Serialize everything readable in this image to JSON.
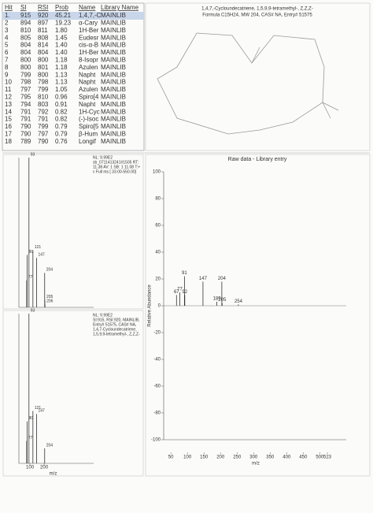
{
  "table": {
    "header": [
      "Hit",
      "SI",
      "RSI",
      "Prob",
      "Name",
      "Library Name"
    ],
    "rows": [
      [
        "1.",
        "915",
        "920",
        "45.21",
        "1,4,7,-C",
        "MAINLIB"
      ],
      [
        "2",
        "894",
        "897",
        "19.23",
        "α-Cary",
        "MAINLIB"
      ],
      [
        "3",
        "810",
        "811",
        "1.80",
        "1H-Ber",
        "MAINLIB"
      ],
      [
        "4",
        "805",
        "808",
        "1.45",
        "Eudesr",
        "MAINLIB"
      ],
      [
        "5",
        "804",
        "814",
        "1.40",
        "cis-α-B",
        "MAINLIB"
      ],
      [
        "6",
        "804",
        "804",
        "1.40",
        "1H-Ber",
        "MAINLIB"
      ],
      [
        "7",
        "800",
        "800",
        "1.18",
        "8-Isopr",
        "MAINLIB"
      ],
      [
        "8",
        "800",
        "801",
        "1.18",
        "Azulen",
        "MAINLIB"
      ],
      [
        "9",
        "799",
        "800",
        "1.13",
        "Napht",
        "MAINLIB"
      ],
      [
        "10",
        "798",
        "798",
        "1.13",
        "Napht",
        "MAINLIB"
      ],
      [
        "11",
        "797",
        "799",
        "1.05",
        "Azulen",
        "MAINLIB"
      ],
      [
        "12",
        "795",
        "810",
        "0.96",
        "Spiro[4",
        "MAINLIB"
      ],
      [
        "13",
        "794",
        "803",
        "0.91",
        "Napht",
        "MAINLIB"
      ],
      [
        "14",
        "791",
        "792",
        "0.82",
        "1H-Cyc",
        "MAINLIB"
      ],
      [
        "15",
        "791",
        "791",
        "0.82",
        "(-)-Isoc",
        "MAINLIB"
      ],
      [
        "16",
        "790",
        "799",
        "0.79",
        "Spiro[5",
        "MAINLIB"
      ],
      [
        "17",
        "790",
        "797",
        "0.79",
        "β-Hum",
        "MAINLIB"
      ],
      [
        "18",
        "789",
        "790",
        "0.76",
        "Longif",
        "MAINLIB"
      ]
    ]
  },
  "structure": {
    "name": "1,4,7,-Cycloundecatriene, 1,5,9,9-tetramethyl-, Z,Z,Z-",
    "info": "Formula C15H24, MW 204, CAS# NA, Entry# 51575"
  },
  "chart_data": [
    {
      "type": "bar",
      "annotation": [
        "NL: 9.99E2",
        "sb_0711413241#1505 RT:",
        "11.38 AV: 1 SB: 1 11.08 T:+",
        "c Full ms [ 33.00-550.00]"
      ],
      "x": [
        77,
        80,
        93,
        121,
        147,
        204,
        205,
        206
      ],
      "values": [
        18,
        35,
        100,
        38,
        33,
        23,
        5,
        2
      ],
      "xlim": [
        33,
        550
      ],
      "ylim": [
        0,
        100
      ],
      "color": "#333333"
    },
    {
      "type": "bar",
      "annotation": [
        "NL: 9.99E2",
        "SI:915, RSI:920, MAINLIB,",
        "Entry# 51575, CAS# NA,",
        "1,4,7-Cycloundecatriene,",
        "1,5,9,9-tetramethyl-, Z,Z,Z-"
      ],
      "x": [
        77,
        80,
        93,
        121,
        147,
        204
      ],
      "values": [
        15,
        28,
        100,
        35,
        33,
        10
      ],
      "xlim": [
        33,
        550
      ],
      "ylim": [
        0,
        100
      ],
      "xticks": [
        100,
        200
      ],
      "xlabel": "m/z",
      "color": "#333333"
    },
    {
      "type": "bar",
      "title": "Raw data - Library entry",
      "x": [
        67,
        77,
        91,
        92,
        147,
        189,
        204,
        205,
        254
      ],
      "values": [
        8,
        10,
        22,
        8,
        18,
        3,
        18,
        2,
        1
      ],
      "xlim": [
        33,
        523
      ],
      "ylim": [
        -100,
        100
      ],
      "xticks": [
        50,
        100,
        150,
        200,
        250,
        300,
        350,
        400,
        450,
        500,
        523
      ],
      "yticks": [
        100,
        80,
        60,
        40,
        20,
        0,
        -20,
        -40,
        -60,
        -80,
        -100
      ],
      "xlabel": "m/z",
      "ylabel": "Relative Abundance",
      "color": "#333333"
    }
  ]
}
